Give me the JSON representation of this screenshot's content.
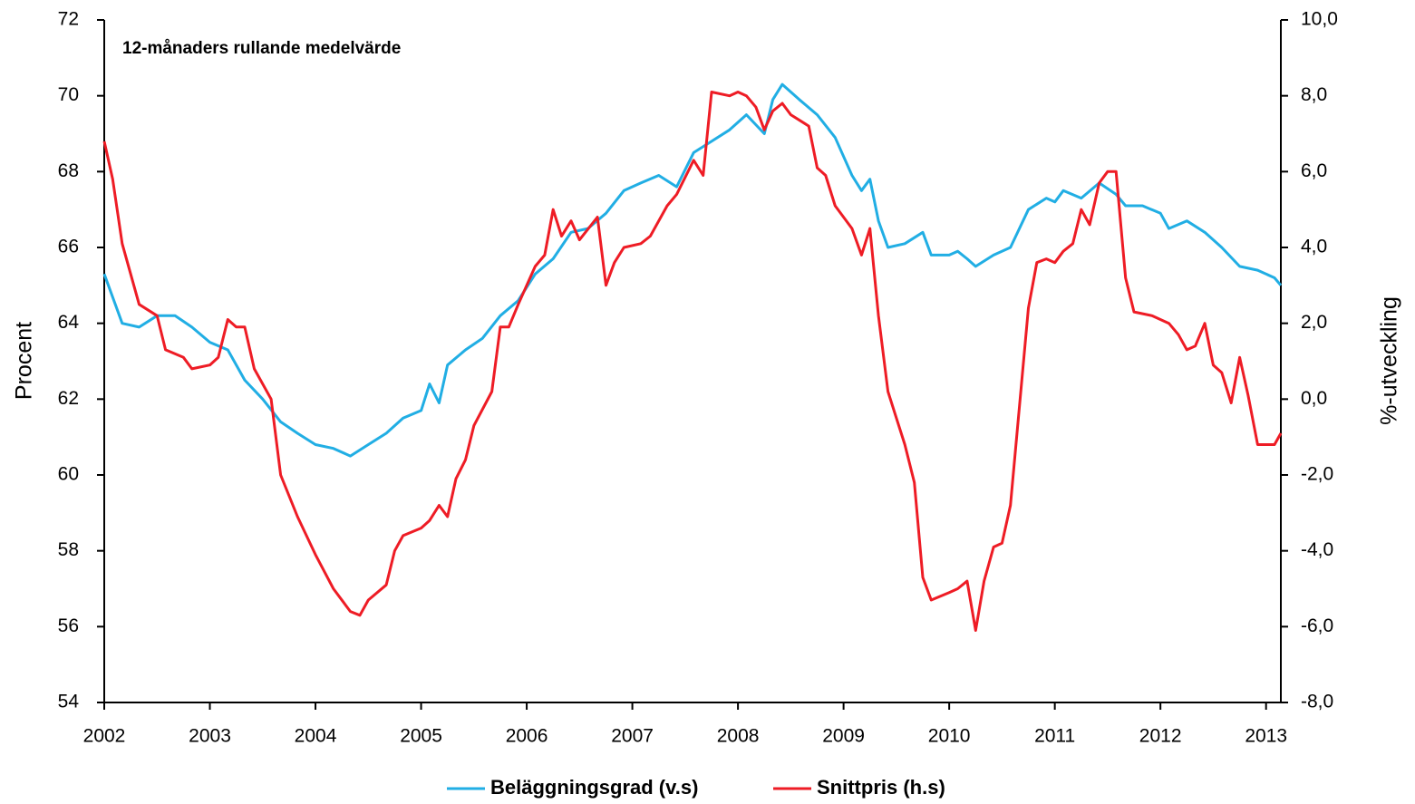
{
  "chart_data": {
    "type": "line",
    "annotation": "12-månaders rullande medelvärde",
    "y_label": "Procent",
    "y2_label": "%-utveckling",
    "xlim": [
      2002,
      2013.14
    ],
    "xticks": [
      2002,
      2003,
      2004,
      2005,
      2006,
      2007,
      2008,
      2009,
      2010,
      2011,
      2012,
      2013
    ],
    "ylim": [
      54,
      72
    ],
    "yticks": [
      54,
      56,
      58,
      60,
      62,
      64,
      66,
      68,
      70,
      72
    ],
    "y2lim": [
      -8,
      10
    ],
    "y2ticks": [
      {
        "value": -8,
        "label": "-8,0"
      },
      {
        "value": -6,
        "label": "-6,0"
      },
      {
        "value": -4,
        "label": "-4,0"
      },
      {
        "value": -2,
        "label": "-2,0"
      },
      {
        "value": 0,
        "label": "0,0"
      },
      {
        "value": 2,
        "label": "2,0"
      },
      {
        "value": 4,
        "label": "4,0"
      },
      {
        "value": 6,
        "label": "6,0"
      },
      {
        "value": 8,
        "label": "8,0"
      },
      {
        "value": 10,
        "label": "10,0"
      }
    ],
    "legend": "bottom",
    "series": [
      {
        "name": "Beläggningsgrad (v.s)",
        "color": "#21aee4",
        "x": [
          2002.0,
          2002.17,
          2002.33,
          2002.5,
          2002.67,
          2002.83,
          2003.0,
          2003.17,
          2003.33,
          2003.5,
          2003.67,
          2003.83,
          2004.0,
          2004.17,
          2004.33,
          2004.5,
          2004.67,
          2004.83,
          2005.0,
          2005.08,
          2005.17,
          2005.25,
          2005.42,
          2005.58,
          2005.75,
          2005.92,
          2006.08,
          2006.25,
          2006.42,
          2006.58,
          2006.75,
          2006.92,
          2007.08,
          2007.25,
          2007.42,
          2007.58,
          2007.75,
          2007.92,
          2008.08,
          2008.25,
          2008.33,
          2008.42,
          2008.58,
          2008.75,
          2008.92,
          2009.08,
          2009.17,
          2009.25,
          2009.33,
          2009.42,
          2009.58,
          2009.75,
          2009.83,
          2010.0,
          2010.08,
          2010.17,
          2010.25,
          2010.42,
          2010.58,
          2010.75,
          2010.92,
          2011.0,
          2011.08,
          2011.25,
          2011.42,
          2011.58,
          2011.67,
          2011.83,
          2012.0,
          2012.08,
          2012.25,
          2012.42,
          2012.58,
          2012.75,
          2012.92,
          2013.08,
          2013.14
        ],
        "values": [
          65.3,
          64.0,
          63.9,
          64.2,
          64.2,
          63.9,
          63.5,
          63.3,
          62.5,
          62.0,
          61.4,
          61.1,
          60.8,
          60.7,
          60.5,
          60.8,
          61.1,
          61.5,
          61.7,
          62.4,
          61.9,
          62.9,
          63.3,
          63.6,
          64.2,
          64.6,
          65.3,
          65.7,
          66.4,
          66.5,
          66.9,
          67.5,
          67.7,
          67.9,
          67.6,
          68.5,
          68.8,
          69.1,
          69.5,
          69.0,
          69.9,
          70.3,
          69.9,
          69.5,
          68.9,
          67.9,
          67.5,
          67.8,
          66.7,
          66.0,
          66.1,
          66.4,
          65.8,
          65.8,
          65.9,
          65.7,
          65.5,
          65.8,
          66.0,
          67.0,
          67.3,
          67.2,
          67.5,
          67.3,
          67.7,
          67.4,
          67.1,
          67.1,
          66.9,
          66.5,
          66.7,
          66.4,
          66.0,
          65.5,
          65.4,
          65.2,
          65.0
        ]
      },
      {
        "name": "Snittpris (h.s)",
        "color": "#ee1c25",
        "axis": "y2",
        "x": [
          2002.0,
          2002.08,
          2002.17,
          2002.33,
          2002.5,
          2002.58,
          2002.75,
          2002.83,
          2003.0,
          2003.08,
          2003.17,
          2003.25,
          2003.33,
          2003.42,
          2003.58,
          2003.67,
          2003.83,
          2004.0,
          2004.17,
          2004.33,
          2004.42,
          2004.5,
          2004.67,
          2004.75,
          2004.83,
          2005.0,
          2005.08,
          2005.17,
          2005.25,
          2005.33,
          2005.42,
          2005.5,
          2005.67,
          2005.75,
          2005.83,
          2005.92,
          2006.08,
          2006.17,
          2006.25,
          2006.33,
          2006.42,
          2006.5,
          2006.67,
          2006.75,
          2006.83,
          2006.92,
          2007.08,
          2007.17,
          2007.33,
          2007.42,
          2007.58,
          2007.67,
          2007.75,
          2007.92,
          2008.0,
          2008.08,
          2008.17,
          2008.25,
          2008.33,
          2008.42,
          2008.5,
          2008.67,
          2008.75,
          2008.83,
          2008.92,
          2009.08,
          2009.17,
          2009.25,
          2009.33,
          2009.42,
          2009.5,
          2009.58,
          2009.67,
          2009.75,
          2009.83,
          2010.0,
          2010.08,
          2010.17,
          2010.25,
          2010.33,
          2010.42,
          2010.5,
          2010.58,
          2010.75,
          2010.83,
          2010.92,
          2011.0,
          2011.08,
          2011.17,
          2011.25,
          2011.33,
          2011.42,
          2011.5,
          2011.58,
          2011.67,
          2011.75,
          2011.92,
          2012.08,
          2012.17,
          2012.25,
          2012.33,
          2012.42,
          2012.5,
          2012.58,
          2012.67,
          2012.75,
          2012.83,
          2012.92,
          2013.08,
          2013.14
        ],
        "values": [
          6.8,
          5.8,
          4.1,
          2.5,
          2.2,
          1.3,
          1.1,
          0.8,
          0.9,
          1.1,
          2.1,
          1.9,
          1.9,
          0.8,
          0.0,
          -2.0,
          -3.1,
          -4.1,
          -5.0,
          -5.6,
          -5.7,
          -5.3,
          -4.9,
          -4.0,
          -3.6,
          -3.4,
          -3.2,
          -2.8,
          -3.1,
          -2.1,
          -1.6,
          -0.7,
          0.2,
          1.9,
          1.9,
          2.5,
          3.5,
          3.8,
          5.0,
          4.3,
          4.7,
          4.2,
          4.8,
          3.0,
          3.6,
          4.0,
          4.1,
          4.3,
          5.1,
          5.4,
          6.3,
          5.9,
          8.1,
          8.0,
          8.1,
          8.0,
          7.7,
          7.1,
          7.6,
          7.8,
          7.5,
          7.2,
          6.1,
          5.9,
          5.1,
          4.5,
          3.8,
          4.5,
          2.2,
          0.2,
          -0.5,
          -1.2,
          -2.2,
          -4.7,
          -5.3,
          -5.1,
          -5.0,
          -4.8,
          -6.1,
          -4.8,
          -3.9,
          -3.8,
          -2.8,
          2.4,
          3.6,
          3.7,
          3.6,
          3.9,
          4.1,
          5.0,
          4.6,
          5.7,
          6.0,
          6.0,
          3.2,
          2.3,
          2.2,
          2.0,
          1.7,
          1.3,
          1.4,
          2.0,
          0.9,
          0.7,
          -0.1,
          1.1,
          0.1,
          -1.2,
          -1.2,
          -0.9
        ]
      }
    ]
  }
}
